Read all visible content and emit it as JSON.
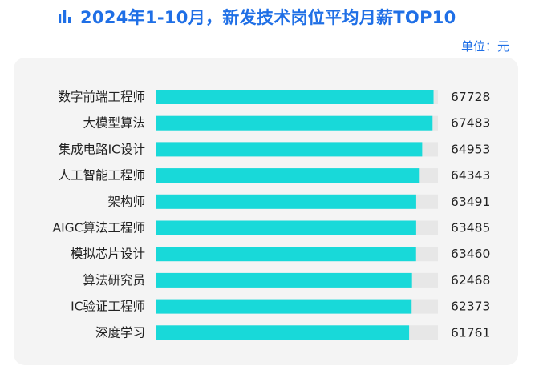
{
  "header": {
    "icon": "bar-chart-icon",
    "title": "2024年1-10月，新发技术岗位平均月薪TOP10",
    "unit": "单位：元"
  },
  "colors": {
    "title": "#1f6fe6",
    "bar": "#18d9d9",
    "track": "#e7e7e7",
    "panel": "#f4f4f4",
    "text": "#222222"
  },
  "chart_data": {
    "type": "bar",
    "orientation": "horizontal",
    "title": "2024年1-10月，新发技术岗位平均月薪TOP10",
    "unit": "单位：元",
    "categories": [
      "数字前端工程师",
      "大模型算法",
      "集成电路IC设计",
      "人工智能工程师",
      "架构师",
      "AIGC算法工程师",
      "模拟芯片设计",
      "算法研究员",
      "IC验证工程师",
      "深度学习"
    ],
    "values": [
      67728,
      67483,
      64953,
      64343,
      63491,
      63485,
      63460,
      62468,
      62373,
      61761
    ],
    "xlim": [
      0,
      68800
    ],
    "grid": false,
    "legend": "none"
  }
}
